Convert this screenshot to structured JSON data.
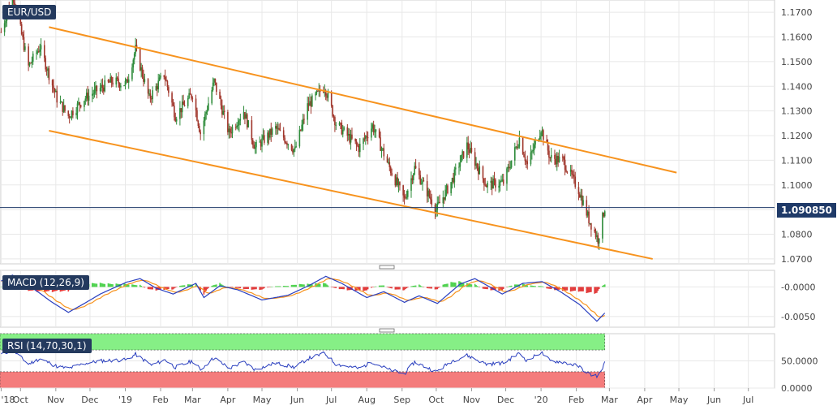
{
  "chart_data": [
    {
      "type": "candlestick",
      "series_name": "EUR/USD",
      "current_price": "1.090850",
      "ylim": [
        1.068,
        1.175
      ],
      "yticks": [
        "1.1700",
        "1.1600",
        "1.1500",
        "1.1400",
        "1.1300",
        "1.1200",
        "1.1100",
        "1.1000",
        "1.0900",
        "1.0800",
        "1.0700"
      ],
      "ytick_values": [
        1.17,
        1.16,
        1.15,
        1.14,
        1.13,
        1.12,
        1.11,
        1.1,
        1.09,
        1.08,
        1.07
      ],
      "close_path": [
        [
          "2018-09-14",
          1.162
        ],
        [
          "2018-09-24",
          1.178
        ],
        [
          "2018-10-08",
          1.148
        ],
        [
          "2018-10-18",
          1.156
        ],
        [
          "2018-11-02",
          1.135
        ],
        [
          "2018-11-12",
          1.128
        ],
        [
          "2018-11-26",
          1.135
        ],
        [
          "2018-12-06",
          1.138
        ],
        [
          "2018-12-20",
          1.142
        ],
        [
          "2019-01-02",
          1.141
        ],
        [
          "2019-01-10",
          1.155
        ],
        [
          "2019-01-22",
          1.135
        ],
        [
          "2019-02-04",
          1.145
        ],
        [
          "2019-02-14",
          1.128
        ],
        [
          "2019-03-01",
          1.137
        ],
        [
          "2019-03-08",
          1.121
        ],
        [
          "2019-03-20",
          1.142
        ],
        [
          "2019-04-02",
          1.121
        ],
        [
          "2019-04-15",
          1.13
        ],
        [
          "2019-04-25",
          1.115
        ],
        [
          "2019-05-13",
          1.123
        ],
        [
          "2019-05-30",
          1.114
        ],
        [
          "2019-06-10",
          1.132
        ],
        [
          "2019-06-25",
          1.14
        ],
        [
          "2019-07-05",
          1.125
        ],
        [
          "2019-07-25",
          1.115
        ],
        [
          "2019-08-06",
          1.124
        ],
        [
          "2019-08-20",
          1.108
        ],
        [
          "2019-09-03",
          1.094
        ],
        [
          "2019-09-12",
          1.107
        ],
        [
          "2019-10-01",
          1.09
        ],
        [
          "2019-10-15",
          1.102
        ],
        [
          "2019-10-28",
          1.116
        ],
        [
          "2019-11-14",
          1.1
        ],
        [
          "2019-11-29",
          1.101
        ],
        [
          "2019-12-13",
          1.119
        ],
        [
          "2019-12-20",
          1.108
        ],
        [
          "2020-01-01",
          1.123
        ],
        [
          "2020-01-09",
          1.111
        ],
        [
          "2020-01-20",
          1.11
        ],
        [
          "2020-02-03",
          1.098
        ],
        [
          "2020-02-12",
          1.086
        ],
        [
          "2020-02-20",
          1.078
        ],
        [
          "2020-02-26",
          1.0909
        ]
      ],
      "channel_upper": [
        [
          "2018-10-26",
          1.164
        ],
        [
          "2020-04-29",
          1.105
        ]
      ],
      "channel_lower": [
        [
          "2018-10-26",
          1.122
        ],
        [
          "2020-04-08",
          1.07
        ]
      ]
    },
    {
      "type": "macd",
      "label": "MACD (12,26,9)",
      "ylim": [
        -0.0068,
        0.0028
      ],
      "yticks": [
        "-0.0000",
        "-0.0050"
      ],
      "ytick_values": [
        0,
        -0.005
      ],
      "macd_path": [
        [
          "2018-09-14",
          0.001
        ],
        [
          "2018-09-24",
          0.002
        ],
        [
          "2018-10-04",
          0.0008
        ],
        [
          "2018-10-16",
          -0.0008
        ],
        [
          "2018-10-28",
          -0.0025
        ],
        [
          "2018-11-12",
          -0.0043
        ],
        [
          "2018-11-26",
          -0.0028
        ],
        [
          "2018-12-10",
          -0.0012
        ],
        [
          "2019-01-02",
          0.0008
        ],
        [
          "2019-01-14",
          0.0014
        ],
        [
          "2019-01-28",
          -0.0002
        ],
        [
          "2019-02-12",
          -0.0012
        ],
        [
          "2019-03-04",
          0.0006
        ],
        [
          "2019-03-11",
          -0.0018
        ],
        [
          "2019-03-25",
          0.0002
        ],
        [
          "2019-04-10",
          -0.0005
        ],
        [
          "2019-05-01",
          -0.0022
        ],
        [
          "2019-05-24",
          -0.0014
        ],
        [
          "2019-06-12",
          0.0003
        ],
        [
          "2019-06-26",
          0.0018
        ],
        [
          "2019-07-10",
          0.0006
        ],
        [
          "2019-08-01",
          -0.0018
        ],
        [
          "2019-08-16",
          -0.0008
        ],
        [
          "2019-09-03",
          -0.0026
        ],
        [
          "2019-09-16",
          -0.0015
        ],
        [
          "2019-10-02",
          -0.0028
        ],
        [
          "2019-10-22",
          0.0005
        ],
        [
          "2019-11-04",
          0.0014
        ],
        [
          "2019-11-28",
          -0.0012
        ],
        [
          "2019-12-16",
          0.0006
        ],
        [
          "2020-01-02",
          0.0009
        ],
        [
          "2020-01-18",
          -0.0008
        ],
        [
          "2020-02-04",
          -0.003
        ],
        [
          "2020-02-19",
          -0.0058
        ],
        [
          "2020-02-26",
          -0.0044
        ]
      ]
    },
    {
      "type": "rsi",
      "label": "RSI (14,70,30,1)",
      "ylim": [
        0,
        100
      ],
      "yticks": [
        "50.0000",
        "0.0000"
      ],
      "ytick_values": [
        50,
        0
      ],
      "overbought": 70,
      "oversold": 30,
      "rsi_path": [
        [
          "2018-09-14",
          62
        ],
        [
          "2018-09-24",
          70
        ],
        [
          "2018-10-08",
          44
        ],
        [
          "2018-10-18",
          54
        ],
        [
          "2018-11-02",
          40
        ],
        [
          "2018-11-12",
          36
        ],
        [
          "2018-11-26",
          45
        ],
        [
          "2018-12-10",
          50
        ],
        [
          "2019-01-02",
          52
        ],
        [
          "2019-01-10",
          62
        ],
        [
          "2019-01-24",
          42
        ],
        [
          "2019-02-05",
          52
        ],
        [
          "2019-02-14",
          38
        ],
        [
          "2019-03-01",
          50
        ],
        [
          "2019-03-08",
          34
        ],
        [
          "2019-03-20",
          56
        ],
        [
          "2019-04-02",
          36
        ],
        [
          "2019-04-15",
          48
        ],
        [
          "2019-04-25",
          34
        ],
        [
          "2019-05-13",
          46
        ],
        [
          "2019-05-30",
          38
        ],
        [
          "2019-06-10",
          54
        ],
        [
          "2019-06-25",
          64
        ],
        [
          "2019-07-05",
          44
        ],
        [
          "2019-07-25",
          36
        ],
        [
          "2019-08-06",
          48
        ],
        [
          "2019-08-20",
          34
        ],
        [
          "2019-09-03",
          26
        ],
        [
          "2019-09-12",
          48
        ],
        [
          "2019-10-01",
          30
        ],
        [
          "2019-10-15",
          50
        ],
        [
          "2019-10-28",
          60
        ],
        [
          "2019-11-14",
          44
        ],
        [
          "2019-11-29",
          46
        ],
        [
          "2019-12-13",
          64
        ],
        [
          "2019-12-20",
          50
        ],
        [
          "2020-01-01",
          66
        ],
        [
          "2020-01-09",
          50
        ],
        [
          "2020-01-20",
          48
        ],
        [
          "2020-02-03",
          40
        ],
        [
          "2020-02-12",
          26
        ],
        [
          "2020-02-20",
          22
        ],
        [
          "2020-02-26",
          46
        ]
      ]
    }
  ],
  "x_axis": {
    "range": [
      "2018-09-13",
      "2020-07-24"
    ],
    "ticks": [
      {
        "date": "2018-09-14",
        "label": "'18"
      },
      {
        "date": "2018-10-01",
        "label": "Oct"
      },
      {
        "date": "2018-11-01",
        "label": "Nov"
      },
      {
        "date": "2018-12-01",
        "label": "Dec"
      },
      {
        "date": "2019-01-01",
        "label": "'19"
      },
      {
        "date": "2019-02-01",
        "label": "Feb"
      },
      {
        "date": "2019-03-01",
        "label": "Mar"
      },
      {
        "date": "2019-04-01",
        "label": "Apr"
      },
      {
        "date": "2019-05-01",
        "label": "May"
      },
      {
        "date": "2019-06-01",
        "label": "Jun"
      },
      {
        "date": "2019-07-01",
        "label": "Jul"
      },
      {
        "date": "2019-08-01",
        "label": "Aug"
      },
      {
        "date": "2019-09-01",
        "label": "Sep"
      },
      {
        "date": "2019-10-01",
        "label": "Oct"
      },
      {
        "date": "2019-11-01",
        "label": "Nov"
      },
      {
        "date": "2019-12-01",
        "label": "Dec"
      },
      {
        "date": "2020-01-01",
        "label": "'20"
      },
      {
        "date": "2020-02-01",
        "label": "Feb"
      },
      {
        "date": "2020-03-01",
        "label": "Mar"
      },
      {
        "date": "2020-04-01",
        "label": "Apr"
      },
      {
        "date": "2020-05-01",
        "label": "May"
      },
      {
        "date": "2020-06-01",
        "label": "Jun"
      },
      {
        "date": "2020-07-01",
        "label": "Jul"
      }
    ]
  },
  "colors": {
    "up_candle": "#2e8b3a",
    "down_candle": "#a0362b",
    "channel": "#f7931e",
    "macd_line": "#2a3fbf",
    "signal_line": "#f7931e",
    "hist_positive": "#4fd24f",
    "hist_negative": "#e23b3b",
    "rsi_line": "#2a3fbf",
    "overbought_zone": "#86ef86",
    "oversold_zone": "#f47c7c",
    "price_line": "#1f3a68",
    "grid": "#e8e8e8"
  }
}
